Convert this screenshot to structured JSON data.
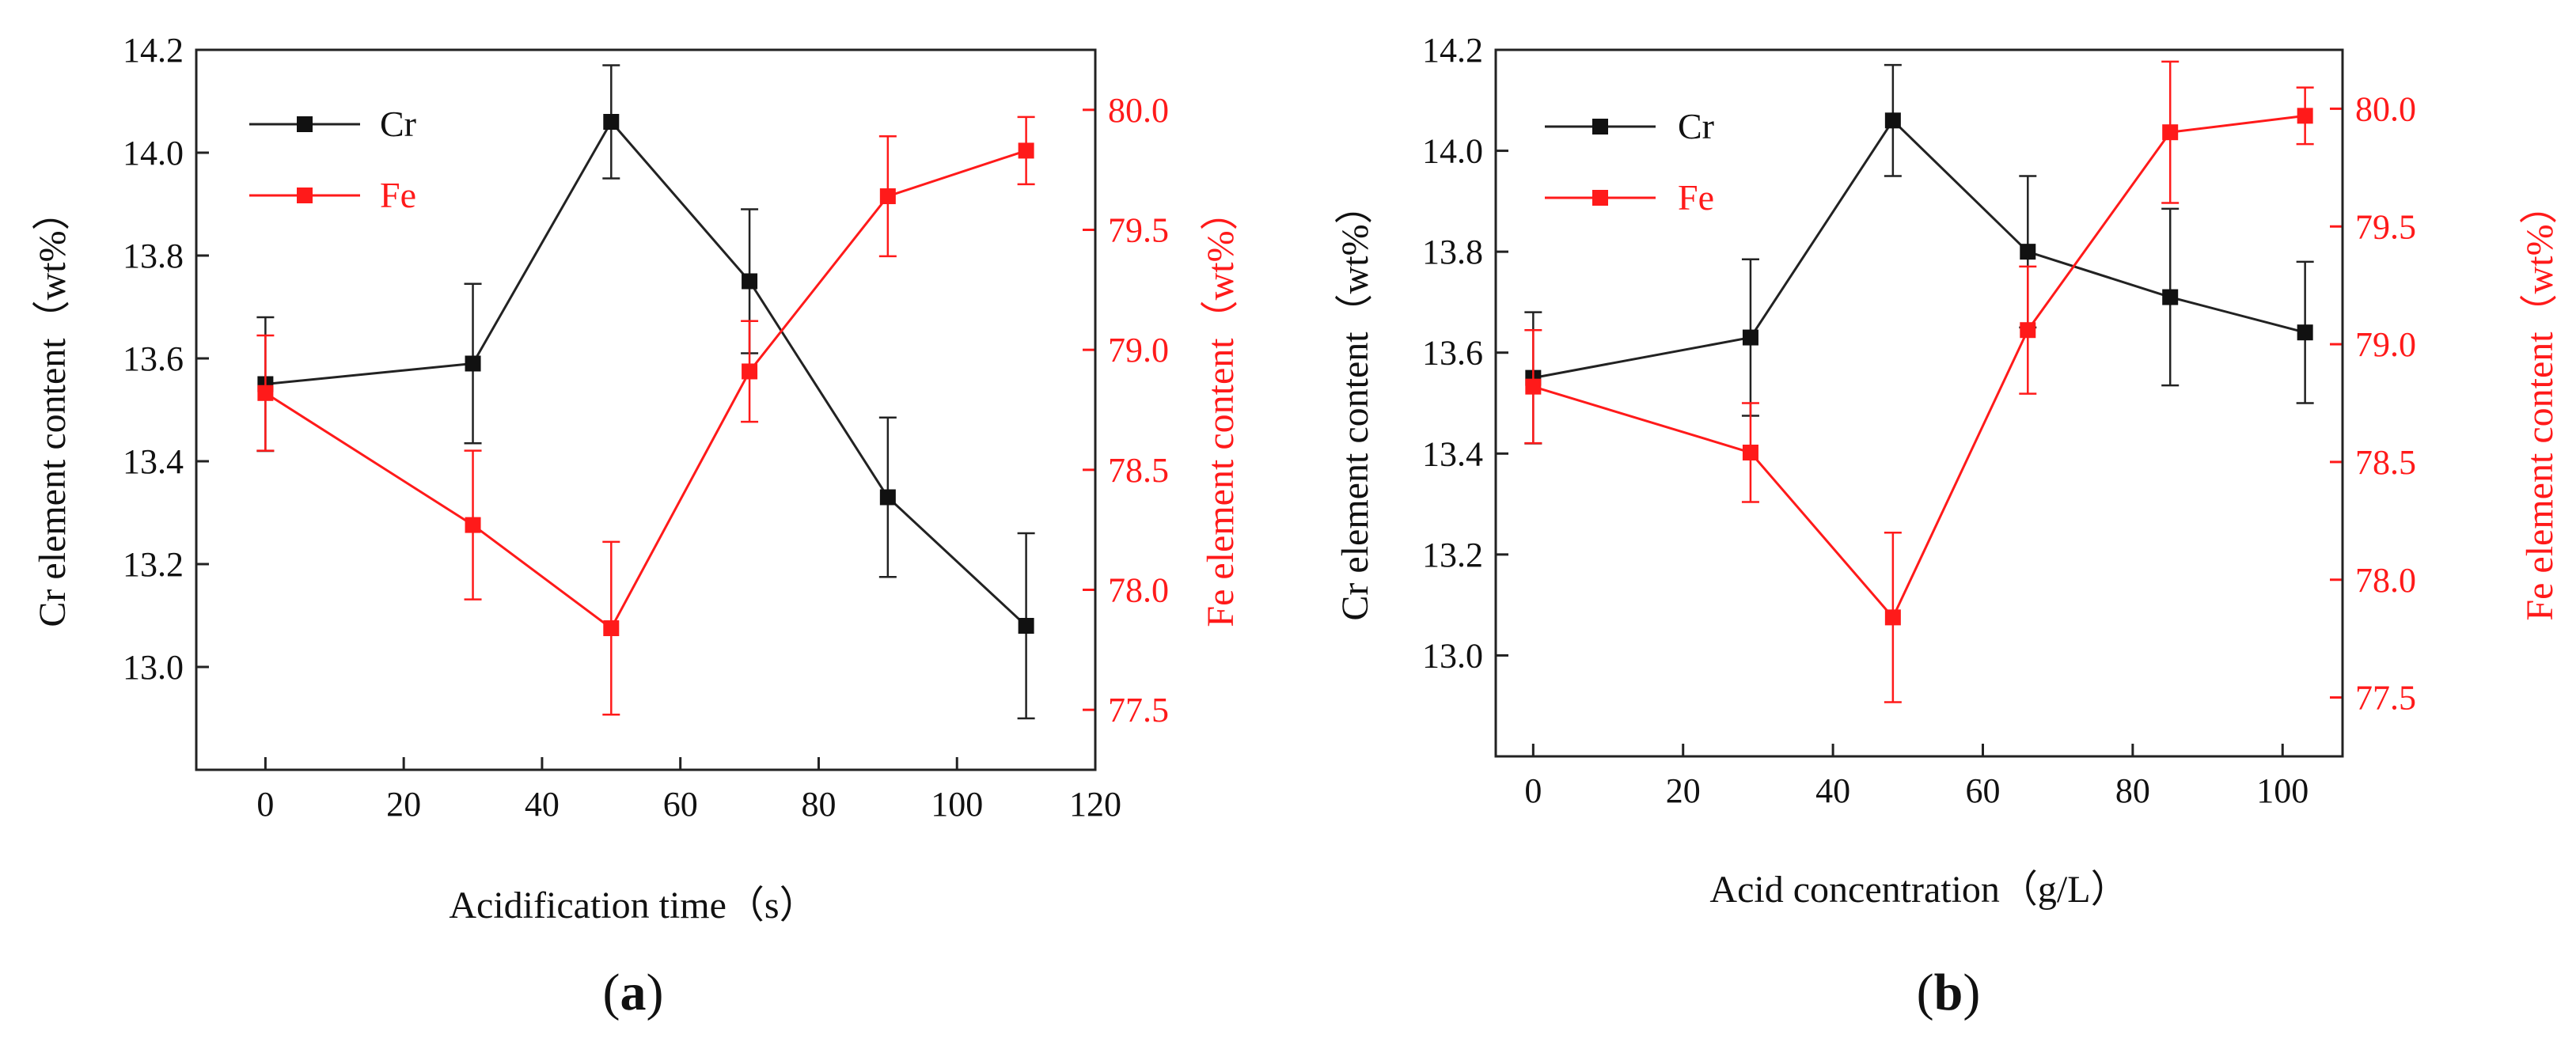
{
  "chart_data": [
    {
      "type": "line",
      "panel_label": "a",
      "xlabel": "Acidification time（s）",
      "ylabel_left": "Cr element content（wt%）",
      "ylabel_right": "Fe element content（wt%）",
      "xlim": [
        -10,
        120
      ],
      "xticks": [
        0,
        20,
        40,
        60,
        80,
        100,
        120
      ],
      "ylim_left": [
        12.8,
        14.2
      ],
      "yticks_left": [
        13.0,
        13.2,
        13.4,
        13.6,
        13.8,
        14.0,
        14.2
      ],
      "ylim_right": [
        77.25,
        80.25
      ],
      "yticks_right": [
        77.5,
        78.0,
        78.5,
        79.0,
        79.5,
        80.0
      ],
      "legend_position": "top-left",
      "series": [
        {
          "name": "Cr",
          "axis": "left",
          "color": "#222222",
          "x": [
            0,
            30,
            50,
            70,
            90,
            110
          ],
          "y": [
            13.55,
            13.59,
            14.06,
            13.75,
            13.33,
            13.08
          ],
          "err": [
            0.13,
            0.155,
            0.11,
            0.14,
            0.155,
            0.18
          ]
        },
        {
          "name": "Fe",
          "axis": "right",
          "color": "#ff1a1a",
          "x": [
            0,
            30,
            50,
            70,
            90,
            110
          ],
          "y": [
            78.82,
            78.27,
            77.84,
            78.91,
            79.64,
            79.83
          ],
          "err": [
            0.24,
            0.31,
            0.36,
            0.21,
            0.25,
            0.14
          ]
        }
      ]
    },
    {
      "type": "line",
      "panel_label": "b",
      "xlabel": "Acid concentration（g/L）",
      "ylabel_left": "Cr element content（wt%）",
      "ylabel_right": "Fe element content（wt%）",
      "xlim": [
        -5,
        108
      ],
      "xticks": [
        0,
        20,
        40,
        60,
        80,
        100
      ],
      "ylim_left": [
        12.8,
        14.2
      ],
      "yticks_left": [
        13.0,
        13.2,
        13.4,
        13.6,
        13.8,
        14.0,
        14.2
      ],
      "ylim_right": [
        77.25,
        80.25
      ],
      "yticks_right": [
        77.5,
        78.0,
        78.5,
        79.0,
        79.5,
        80.0
      ],
      "legend_position": "top-left",
      "series": [
        {
          "name": "Cr",
          "axis": "left",
          "color": "#222222",
          "x": [
            0,
            29,
            48,
            66,
            85,
            103
          ],
          "y": [
            13.55,
            13.63,
            14.06,
            13.8,
            13.71,
            13.64
          ],
          "err": [
            0.13,
            0.155,
            0.11,
            0.15,
            0.175,
            0.14
          ]
        },
        {
          "name": "Fe",
          "axis": "right",
          "color": "#ff1a1a",
          "x": [
            0,
            29,
            48,
            66,
            85,
            103
          ],
          "y": [
            78.82,
            78.54,
            77.84,
            79.06,
            79.9,
            79.97
          ],
          "err": [
            0.24,
            0.21,
            0.36,
            0.27,
            0.3,
            0.12
          ]
        }
      ]
    }
  ]
}
